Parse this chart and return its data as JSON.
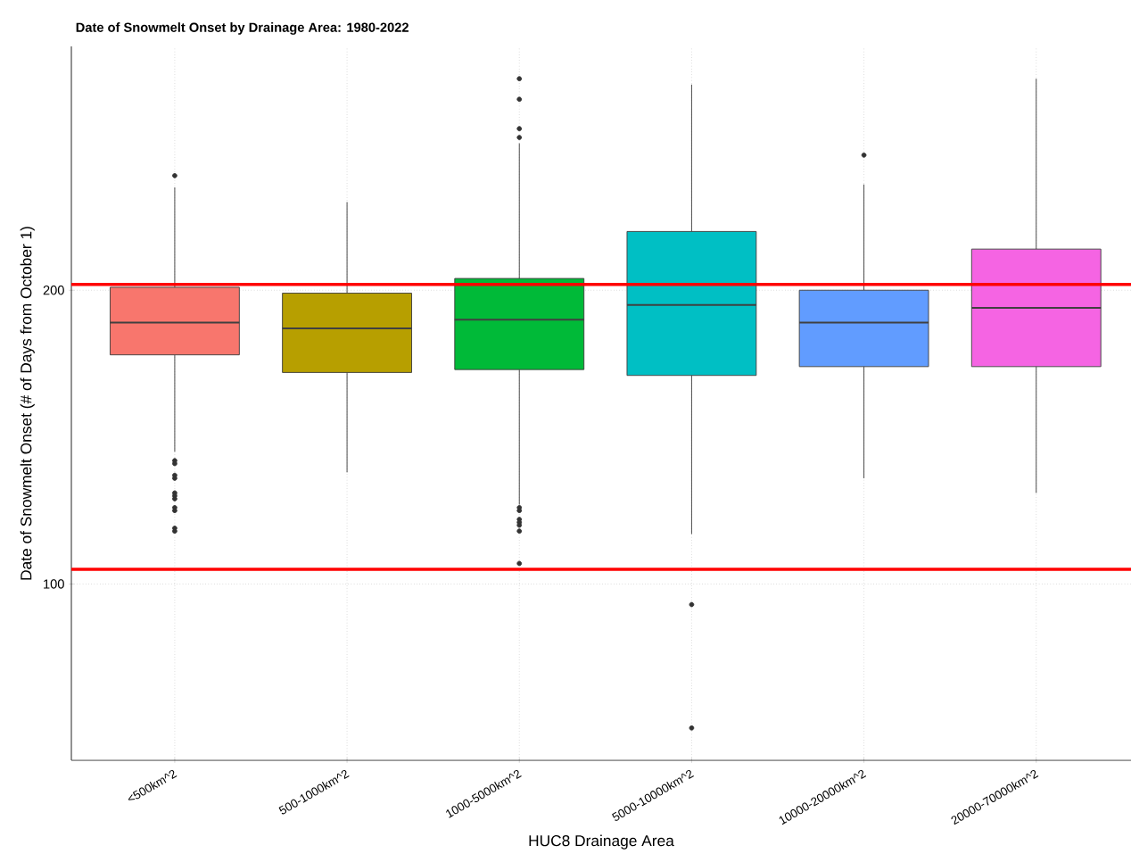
{
  "chart_data": {
    "type": "box",
    "title": "Date of Snowmelt Onset by Drainage Area: 1980-2022",
    "xlabel": "HUC8 Drainage Area",
    "ylabel": "Date of Snowmelt Onset (# of Days from October 1)",
    "categories": [
      "<500km^2",
      "500-1000km^2",
      "1000-5000km^2",
      "5000-10000km^2",
      "10000-20000km^2",
      "20000-70000km^2"
    ],
    "colors": [
      "#f8766d",
      "#b79f00",
      "#00ba38",
      "#00bfc4",
      "#619cff",
      "#f564e3"
    ],
    "boxes": [
      {
        "low": 145,
        "q1": 178,
        "median": 189,
        "q3": 201,
        "high": 235,
        "outliers": [
          239,
          142,
          141,
          137,
          136,
          131,
          130,
          129,
          126,
          125,
          119,
          118
        ]
      },
      {
        "low": 138,
        "q1": 172,
        "median": 187,
        "q3": 199,
        "high": 230
      },
      {
        "low": 127,
        "q1": 173,
        "median": 190,
        "q3": 204,
        "high": 250,
        "outliers": [
          272,
          265,
          255,
          252,
          126,
          125,
          122,
          121,
          120,
          118,
          107
        ]
      },
      {
        "low": 117,
        "q1": 171,
        "median": 195,
        "q3": 220,
        "high": 270,
        "outliers": [
          93,
          51
        ]
      },
      {
        "low": 136,
        "q1": 174,
        "median": 189,
        "q3": 200,
        "high": 236,
        "outliers": [
          246
        ]
      },
      {
        "low": 131,
        "q1": 174,
        "median": 194,
        "q3": 214,
        "high": 272
      }
    ],
    "ylim": [
      40,
      283
    ],
    "yticks": [
      100,
      200
    ],
    "grid": true,
    "ref_lines": [
      {
        "axis": "y",
        "value": 202,
        "color": "#ff0000"
      },
      {
        "axis": "y",
        "value": 105,
        "color": "#ff0000"
      }
    ]
  }
}
